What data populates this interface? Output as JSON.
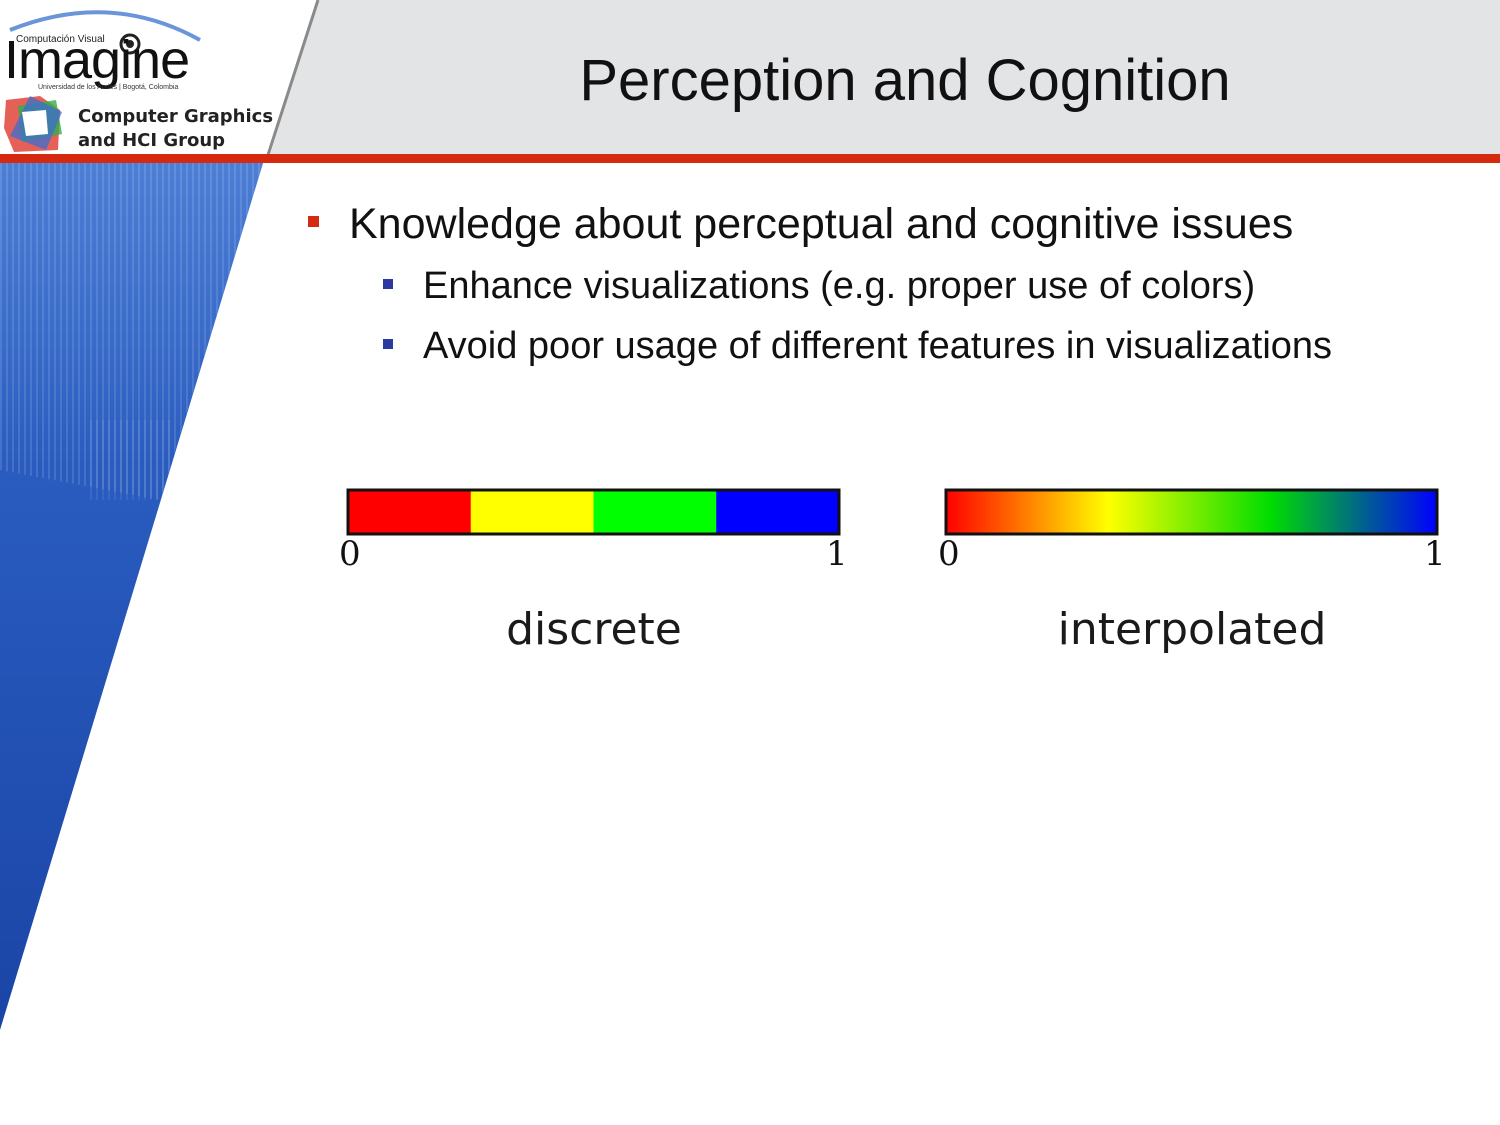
{
  "slide": {
    "title": "Perception and Cognition",
    "bullets": [
      {
        "level": 1,
        "text": "Knowledge about perceptual and cognitive issues"
      },
      {
        "level": 2,
        "text": "Enhance visualizations (e.g. proper use of colors)"
      },
      {
        "level": 2,
        "text": "Avoid poor usage of different features in visualizations"
      }
    ]
  },
  "logo": {
    "top_text": "Computación Visual",
    "brand": "Imagine",
    "subtitle": "Universidad de los Andes | Bogotá, Colombia",
    "group_line1": "Computer Graphics",
    "group_line2": "and HCI Group"
  },
  "colormaps": {
    "discrete": {
      "caption": "discrete",
      "min_label": "0",
      "max_label": "1",
      "colors": [
        "#ff0000",
        "#ffff00",
        "#00ff00",
        "#0000ff"
      ]
    },
    "interpolated": {
      "caption": "interpolated",
      "min_label": "0",
      "max_label": "1",
      "stops": [
        "#ff0000",
        "#ffff00",
        "#00dd00",
        "#0000ff"
      ]
    }
  },
  "colors": {
    "accent_red": "#d62a10",
    "sidebar_blue": "#1a4aa8",
    "header_gray": "#e3e4e6"
  }
}
